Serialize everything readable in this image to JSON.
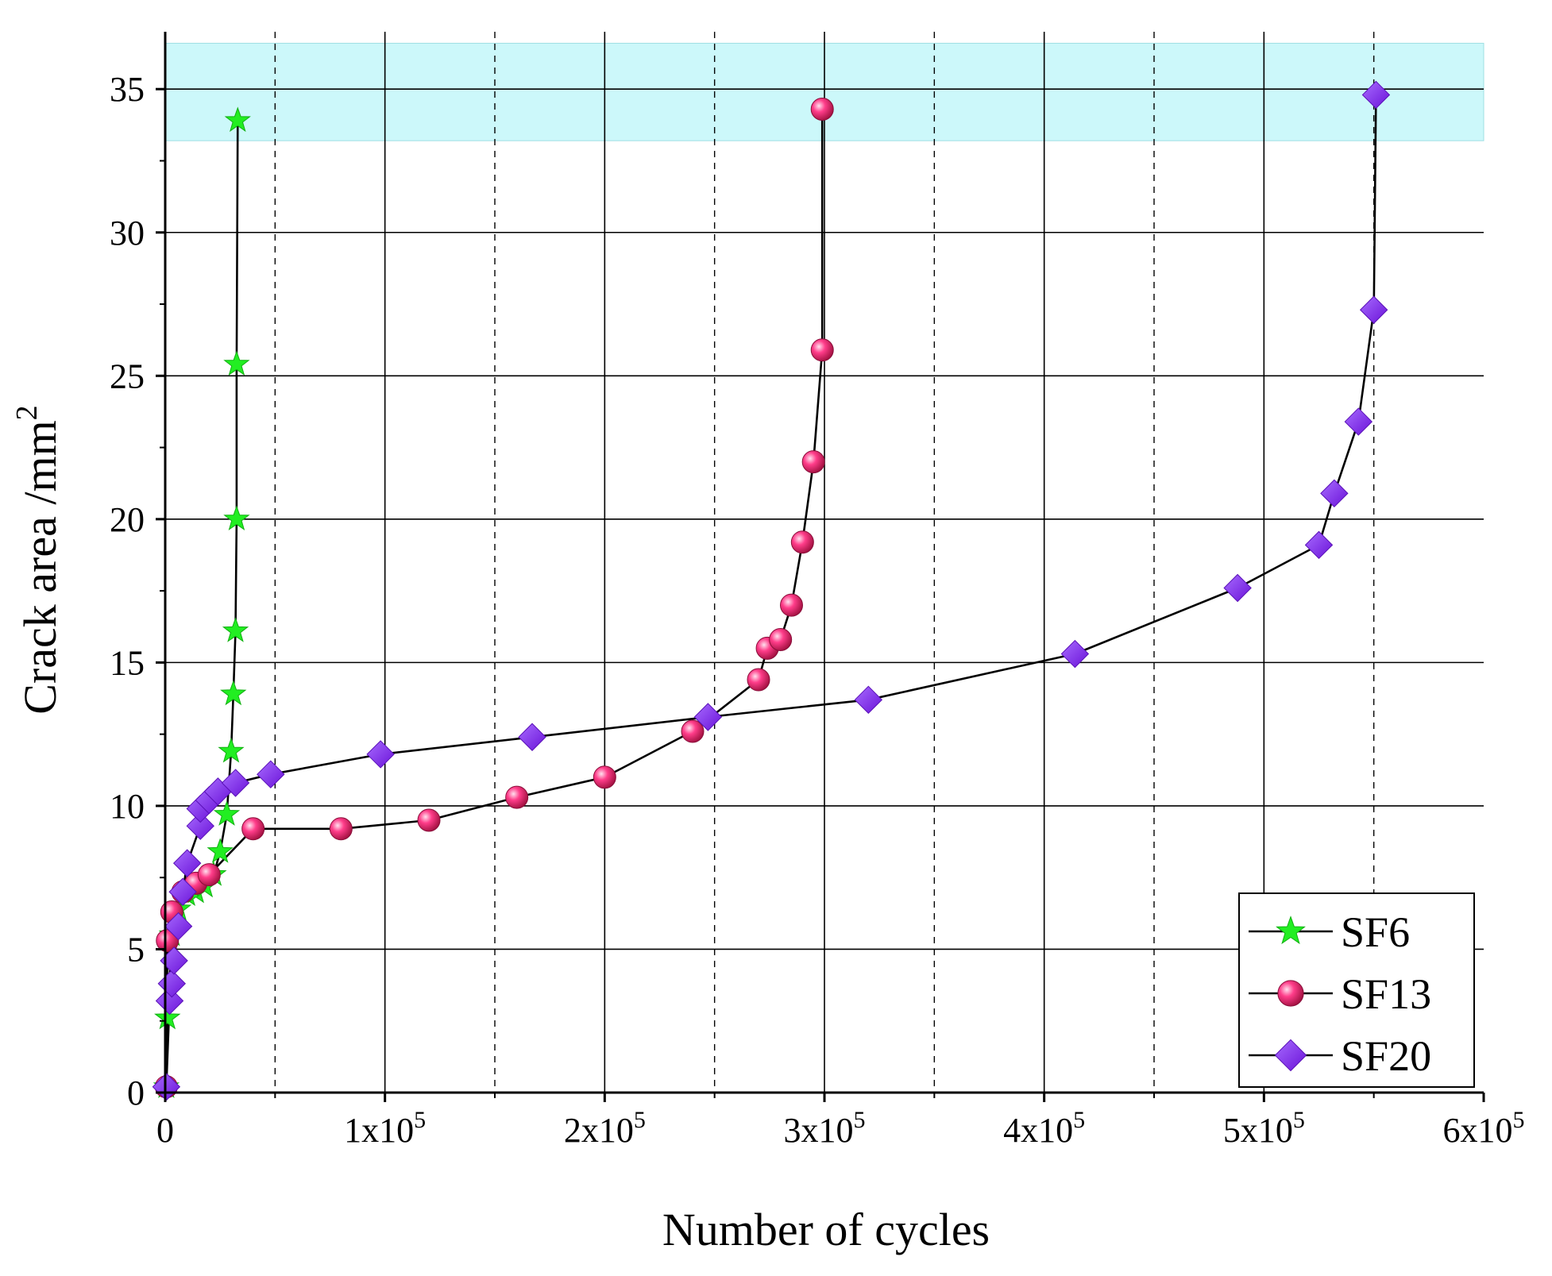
{
  "chart_data": {
    "type": "line",
    "xlabel": "Number of cycles",
    "ylabel": "Crack area /mm",
    "ylabel_superscript": "2",
    "xlim": [
      0,
      600000
    ],
    "ylim": [
      0,
      37
    ],
    "grid": true,
    "highlight_band": {
      "y_from": 33.2,
      "y_to": 36.6,
      "color": "#ccf8fa"
    },
    "y_ticks": [
      {
        "value": 0,
        "label": "0"
      },
      {
        "value": 5,
        "label": "5"
      },
      {
        "value": 10,
        "label": "10"
      },
      {
        "value": 15,
        "label": "15"
      },
      {
        "value": 20,
        "label": "20"
      },
      {
        "value": 25,
        "label": "25"
      },
      {
        "value": 30,
        "label": "30"
      },
      {
        "value": 35,
        "label": "35"
      }
    ],
    "x_ticks": [
      {
        "value": 0,
        "mantissa": "0",
        "exponent": ""
      },
      {
        "value": 100000,
        "mantissa": "1x10",
        "exponent": "5"
      },
      {
        "value": 200000,
        "mantissa": "2x10",
        "exponent": "5"
      },
      {
        "value": 300000,
        "mantissa": "3x10",
        "exponent": "5"
      },
      {
        "value": 400000,
        "mantissa": "4x10",
        "exponent": "5"
      },
      {
        "value": 500000,
        "mantissa": "5x10",
        "exponent": "5"
      },
      {
        "value": 600000,
        "mantissa": "6x10",
        "exponent": "5"
      }
    ],
    "legend_position": "bottom-right",
    "series": [
      {
        "name": "SF6",
        "marker": "star",
        "color": "#22ee22",
        "points": [
          [
            500,
            0.2
          ],
          [
            1000,
            2.6
          ],
          [
            3000,
            5.5
          ],
          [
            6000,
            6.4
          ],
          [
            10000,
            6.9
          ],
          [
            14000,
            7.0
          ],
          [
            18000,
            7.2
          ],
          [
            22000,
            7.6
          ],
          [
            25000,
            8.4
          ],
          [
            28000,
            9.7
          ],
          [
            30000,
            11.9
          ],
          [
            31000,
            13.9
          ],
          [
            32000,
            16.1
          ],
          [
            32500,
            20.0
          ],
          [
            32500,
            25.4
          ],
          [
            33000,
            33.9
          ]
        ]
      },
      {
        "name": "SF13",
        "marker": "sphere",
        "color": "#e8206a",
        "points": [
          [
            500,
            0.2
          ],
          [
            1000,
            5.3
          ],
          [
            3000,
            6.3
          ],
          [
            8000,
            7.0
          ],
          [
            14000,
            7.3
          ],
          [
            20000,
            7.6
          ],
          [
            40000,
            9.2
          ],
          [
            80000,
            9.2
          ],
          [
            120000,
            9.5
          ],
          [
            160000,
            10.3
          ],
          [
            200000,
            11.0
          ],
          [
            240000,
            12.6
          ],
          [
            270000,
            14.4
          ],
          [
            274000,
            15.5
          ],
          [
            280000,
            15.8
          ],
          [
            285000,
            17.0
          ],
          [
            290000,
            19.2
          ],
          [
            295000,
            22.0
          ],
          [
            299000,
            25.9
          ],
          [
            299000,
            34.3
          ]
        ]
      },
      {
        "name": "SF20",
        "marker": "diamond",
        "color": "#8a2be2",
        "points": [
          [
            500,
            0.2
          ],
          [
            2000,
            3.2
          ],
          [
            3000,
            3.8
          ],
          [
            4000,
            4.6
          ],
          [
            6000,
            5.8
          ],
          [
            8000,
            7.0
          ],
          [
            10000,
            8.0
          ],
          [
            16000,
            9.3
          ],
          [
            16000,
            9.9
          ],
          [
            20000,
            10.2
          ],
          [
            24000,
            10.5
          ],
          [
            32000,
            10.8
          ],
          [
            48000,
            11.1
          ],
          [
            98000,
            11.8
          ],
          [
            167000,
            12.4
          ],
          [
            247000,
            13.1
          ],
          [
            320000,
            13.7
          ],
          [
            414000,
            15.3
          ],
          [
            488000,
            17.6
          ],
          [
            525000,
            19.1
          ],
          [
            532000,
            20.9
          ],
          [
            543000,
            23.4
          ],
          [
            550000,
            27.3
          ],
          [
            551000,
            34.8
          ]
        ]
      }
    ]
  }
}
